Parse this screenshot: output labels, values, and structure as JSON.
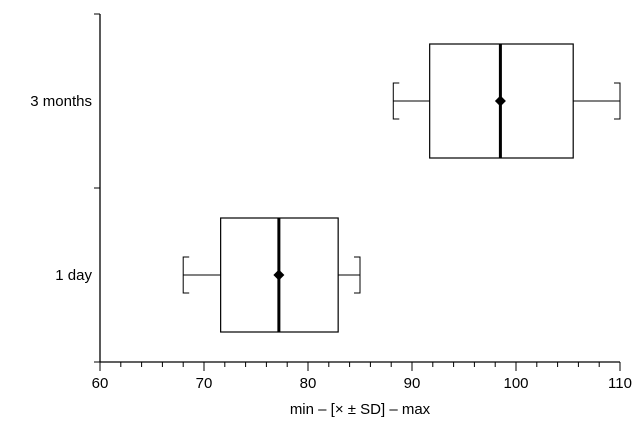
{
  "chart_data": {
    "type": "box",
    "title": "",
    "xlabel": "min – [× ± SD] – max",
    "ylabel": "",
    "xlim": [
      60,
      110
    ],
    "x_ticks": [
      "60",
      "70",
      "80",
      "90",
      "100",
      "110"
    ],
    "categories": [
      "3 months",
      "1 day"
    ],
    "boxes": [
      {
        "label": "3 months",
        "min": 88.2,
        "q1": 91.7,
        "mean": 98.5,
        "q3": 105.5,
        "max": 110.0
      },
      {
        "label": "1 day",
        "min": 68.0,
        "q1": 71.6,
        "mean": 77.2,
        "q3": 82.9,
        "max": 85.0
      }
    ],
    "grid": false,
    "legend": "none"
  }
}
